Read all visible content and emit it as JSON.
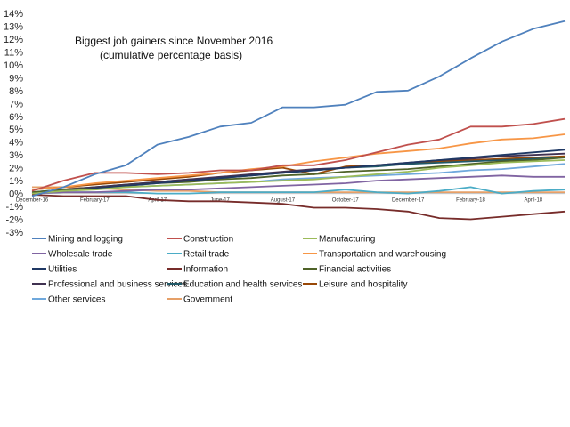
{
  "chart_data": {
    "type": "line",
    "title": "Biggest job gainers since November 2016",
    "subtitle": "(cumulative percentage basis)",
    "xlabel": "",
    "ylabel": "",
    "ylim": [
      -3,
      14
    ],
    "yticks": [
      "14%",
      "13%",
      "12%",
      "11%",
      "10%",
      "9%",
      "8%",
      "7%",
      "6%",
      "5%",
      "4%",
      "3%",
      "2%",
      "1%",
      "0%",
      "-1%",
      "-2%",
      "-3%"
    ],
    "x": [
      "December-16",
      "January-17",
      "February-17",
      "March-17",
      "April-17",
      "May-17",
      "June-17",
      "July-17",
      "August-17",
      "September-17",
      "October-17",
      "November-17",
      "December-17",
      "January-18",
      "February-18",
      "March-18",
      "April-18",
      "May-18"
    ],
    "xtick_labels": [
      "December-16",
      "February-17",
      "April-17",
      "June-17",
      "August-17",
      "October-17",
      "December-17",
      "February-18",
      "April-18"
    ],
    "xtick_indices": [
      0,
      2,
      4,
      6,
      8,
      10,
      12,
      14,
      16
    ],
    "grid": false,
    "legend_position": "bottom",
    "series": [
      {
        "name": "Mining and logging",
        "color": "#4f81bd",
        "values": [
          -0.2,
          0.5,
          1.5,
          2.2,
          3.8,
          4.4,
          5.2,
          5.5,
          6.7,
          6.7,
          6.9,
          7.9,
          8.0,
          9.1,
          10.5,
          11.8,
          12.8,
          13.4
        ]
      },
      {
        "name": "Construction",
        "color": "#c0504d",
        "values": [
          0.2,
          1.0,
          1.6,
          1.6,
          1.5,
          1.6,
          1.8,
          1.8,
          2.2,
          2.2,
          2.6,
          3.2,
          3.8,
          4.2,
          5.2,
          5.2,
          5.4,
          5.8
        ]
      },
      {
        "name": "Manufacturing",
        "color": "#9bbb59",
        "values": [
          0.0,
          0.2,
          0.3,
          0.5,
          0.6,
          0.7,
          0.8,
          0.9,
          1.0,
          1.1,
          1.3,
          1.5,
          1.7,
          2.0,
          2.2,
          2.4,
          2.5,
          2.6
        ]
      },
      {
        "name": "Wholesale trade",
        "color": "#8064a2",
        "values": [
          0.0,
          0.1,
          0.1,
          0.2,
          0.3,
          0.3,
          0.4,
          0.5,
          0.6,
          0.7,
          0.8,
          1.0,
          1.1,
          1.2,
          1.3,
          1.4,
          1.3,
          1.3
        ]
      },
      {
        "name": "Retail trade",
        "color": "#4bacc6",
        "values": [
          0.0,
          0.1,
          0.1,
          0.1,
          0.0,
          0.0,
          0.1,
          0.1,
          0.1,
          0.1,
          0.3,
          0.1,
          0.0,
          0.2,
          0.5,
          0.0,
          0.2,
          0.3
        ]
      },
      {
        "name": "Transportation and warehousing",
        "color": "#f79646",
        "values": [
          0.3,
          0.5,
          0.8,
          1.0,
          1.2,
          1.4,
          1.6,
          1.9,
          2.1,
          2.5,
          2.8,
          3.1,
          3.3,
          3.5,
          3.9,
          4.2,
          4.3,
          4.6
        ]
      },
      {
        "name": "Utilities",
        "color": "#1f3864",
        "values": [
          0.0,
          0.2,
          0.4,
          0.6,
          0.8,
          1.0,
          1.2,
          1.4,
          1.6,
          1.8,
          2.0,
          2.2,
          2.4,
          2.6,
          2.8,
          3.0,
          3.2,
          3.4
        ]
      },
      {
        "name": "Information",
        "color": "#772c2a",
        "values": [
          -0.1,
          -0.2,
          -0.2,
          -0.2,
          -0.5,
          -0.6,
          -0.6,
          -0.7,
          -0.8,
          -1.1,
          -1.1,
          -1.2,
          -1.4,
          -1.9,
          -2.0,
          -1.8,
          -1.6,
          -1.4
        ]
      },
      {
        "name": "Financial activities",
        "color": "#4f6228",
        "values": [
          0.1,
          0.3,
          0.4,
          0.6,
          0.8,
          0.9,
          1.1,
          1.2,
          1.4,
          1.5,
          1.7,
          1.8,
          1.9,
          2.1,
          2.3,
          2.5,
          2.6,
          2.8
        ]
      },
      {
        "name": "Professional and business services",
        "color": "#403151",
        "values": [
          0.0,
          0.3,
          0.5,
          0.7,
          0.9,
          1.1,
          1.3,
          1.5,
          1.7,
          1.9,
          2.0,
          2.2,
          2.4,
          2.6,
          2.7,
          2.9,
          3.0,
          3.1
        ]
      },
      {
        "name": "Education and health services",
        "color": "#215968",
        "values": [
          0.1,
          0.3,
          0.5,
          0.7,
          0.9,
          1.1,
          1.2,
          1.4,
          1.6,
          1.8,
          2.0,
          2.1,
          2.3,
          2.4,
          2.5,
          2.6,
          2.7,
          2.8
        ]
      },
      {
        "name": "Leisure and hospitality",
        "color": "#984807",
        "values": [
          0.3,
          0.5,
          0.7,
          0.9,
          1.1,
          1.3,
          1.6,
          1.8,
          2.0,
          1.5,
          2.1,
          2.2,
          2.3,
          2.5,
          2.6,
          2.7,
          2.8,
          2.9
        ]
      },
      {
        "name": "Other services",
        "color": "#6fa8dc",
        "values": [
          0.0,
          0.2,
          0.4,
          0.5,
          0.6,
          0.7,
          0.8,
          0.9,
          1.1,
          1.2,
          1.3,
          1.4,
          1.5,
          1.6,
          1.8,
          1.9,
          2.1,
          2.3
        ]
      },
      {
        "name": "Government",
        "color": "#e6a068",
        "values": [
          0.5,
          0.5,
          0.4,
          0.3,
          0.2,
          0.2,
          0.1,
          0.1,
          0.1,
          0.1,
          0.1,
          0.1,
          0.1,
          0.1,
          0.1,
          0.1,
          0.1,
          0.1
        ]
      }
    ]
  }
}
